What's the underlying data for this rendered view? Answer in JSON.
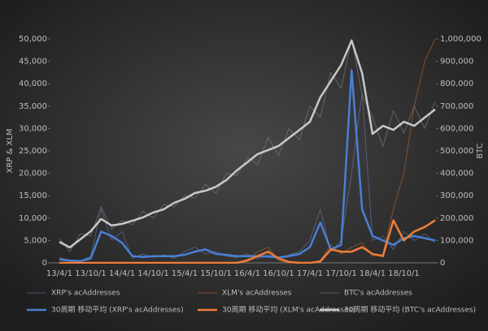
{
  "chart_data": {
    "type": "line",
    "y_title": "XRP & XLM",
    "y2_title": "BTC",
    "categories": [
      "13/4/1",
      null,
      null,
      "13/10/1",
      null,
      null,
      "14/4/1",
      null,
      null,
      "14/10/1",
      null,
      null,
      "15/4/1",
      null,
      null,
      "15/10/1",
      null,
      null,
      "16/4/1",
      null,
      null,
      "16/10/1",
      null,
      null,
      "17/4/1",
      null,
      null,
      "17/10/1",
      null,
      null,
      "18/4/1",
      null,
      null,
      "18/10/1",
      null,
      null,
      null
    ],
    "ylim": [
      0,
      50000
    ],
    "yticks": [
      0,
      {
        "value": 5000,
        "label": "5,000"
      },
      {
        "value": 10000,
        "label": "10,000"
      },
      {
        "value": 15000,
        "label": "15,000"
      },
      {
        "value": 20000,
        "label": "20,000"
      },
      {
        "value": 25000,
        "label": "25,000"
      },
      {
        "value": 30000,
        "label": "30,000"
      },
      {
        "value": 35000,
        "label": "35,000"
      },
      {
        "value": 40000,
        "label": "40,000"
      },
      {
        "value": 45000,
        "label": "45,000"
      },
      {
        "value": 50000,
        "label": "50,000"
      }
    ],
    "y2lim": [
      0,
      1000000
    ],
    "y2ticks": [
      0,
      {
        "value": 100000,
        "label": "100,000"
      },
      {
        "value": 200000,
        "label": "200,000"
      },
      {
        "value": 300000,
        "label": "300,000"
      },
      {
        "value": 400000,
        "label": "400,000"
      },
      {
        "value": 500000,
        "label": "500,000"
      },
      {
        "value": 600000,
        "label": "600,000"
      },
      {
        "value": 700000,
        "label": "700,000"
      },
      {
        "value": 800000,
        "label": "800,000"
      },
      {
        "value": 900000,
        "label": "900,000"
      },
      {
        "value": 1000000,
        "label": "1,000,000"
      }
    ],
    "series": [
      {
        "name": "XRP's acAddresses",
        "color": "#6b7fb0",
        "width": 1,
        "values": [
          1200,
          600,
          300,
          1500,
          12000,
          5000,
          7000,
          1000,
          2000,
          1200,
          1800,
          1000,
          2500,
          3500,
          2000,
          2500,
          1500,
          1200,
          2000,
          1000,
          1800,
          1000,
          1800,
          2500,
          5000,
          12000,
          2500,
          5000,
          20000,
          38000,
          5000,
          6000,
          3000,
          7000,
          5000,
          6500,
          4500
        ]
      },
      {
        "name": "XLM's acAddresses",
        "color": "#c86a32",
        "width": 1,
        "values": [
          0,
          0,
          0,
          0,
          0,
          0,
          0,
          0,
          0,
          0,
          0,
          0,
          0,
          0,
          0,
          0,
          0,
          0,
          800,
          2500,
          3500,
          500,
          0,
          0,
          0,
          500,
          4000,
          2000,
          3500,
          4500,
          1500,
          2000,
          12000,
          20000,
          35000,
          45000,
          50000
        ]
      },
      {
        "name": "BTC's acAddresses",
        "color": "#8a8a8a",
        "width": 1,
        "axis": "y2",
        "values": [
          110000,
          50000,
          130000,
          120000,
          250000,
          150000,
          190000,
          170000,
          230000,
          200000,
          260000,
          250000,
          300000,
          290000,
          350000,
          310000,
          400000,
          390000,
          470000,
          440000,
          560000,
          480000,
          600000,
          550000,
          700000,
          650000,
          850000,
          780000,
          1000000,
          750000,
          650000,
          520000,
          680000,
          580000,
          700000,
          600000,
          720000
        ]
      },
      {
        "name": "30周期 移动平均 (XRP's acAddresses)",
        "color": "#4a7fd4",
        "width": 2.5,
        "values": [
          800,
          500,
          400,
          1000,
          7000,
          6000,
          4500,
          1500,
          1300,
          1500,
          1500,
          1500,
          1800,
          2500,
          3000,
          2000,
          1800,
          1500,
          1500,
          1500,
          1400,
          1200,
          1500,
          2000,
          3500,
          9000,
          3000,
          4000,
          43000,
          12000,
          6000,
          5000,
          4000,
          5500,
          6000,
          5500,
          5000
        ]
      },
      {
        "name": "30周期 移动平均 (XLM's acAddresses)",
        "color": "#f07d3a",
        "width": 2.5,
        "values": [
          0,
          0,
          0,
          0,
          0,
          0,
          0,
          0,
          0,
          0,
          0,
          0,
          0,
          0,
          0,
          0,
          0,
          0,
          500,
          1500,
          2500,
          1000,
          200,
          0,
          0,
          300,
          3000,
          2500,
          2500,
          3500,
          2000,
          1500,
          9500,
          5000,
          7000,
          8000,
          9500
        ]
      },
      {
        "name": "30周期 移动平均 (BTC's acAddresses)",
        "color": "#c8c8c8",
        "width": 2.5,
        "axis": "y2",
        "values": [
          94000,
          69000,
          105000,
          141000,
          196000,
          167000,
          174000,
          188000,
          203000,
          225000,
          239000,
          268000,
          286000,
          312000,
          322000,
          340000,
          370000,
          413000,
          449000,
          486000,
          504000,
          522000,
          558000,
          594000,
          630000,
          739000,
          812000,
          884000,
          993000,
          848000,
          576000,
          612000,
          594000,
          630000,
          612000,
          649000,
          685000
        ]
      }
    ]
  }
}
